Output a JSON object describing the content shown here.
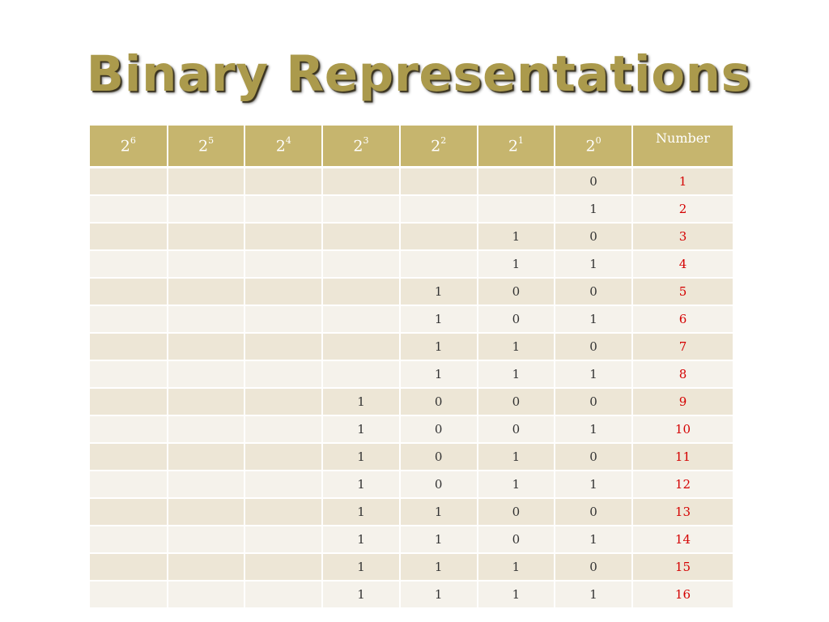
{
  "title": "Binary Representations",
  "table": {
    "headers": [
      {
        "base": "2",
        "exp": "6"
      },
      {
        "base": "2",
        "exp": "5"
      },
      {
        "base": "2",
        "exp": "4"
      },
      {
        "base": "2",
        "exp": "3"
      },
      {
        "base": "2",
        "exp": "2"
      },
      {
        "base": "2",
        "exp": "1"
      },
      {
        "base": "2",
        "exp": "0"
      }
    ],
    "number_header": "Number",
    "rows": [
      {
        "bits": [
          "",
          "",
          "",
          "",
          "",
          "",
          "0"
        ],
        "number": "1"
      },
      {
        "bits": [
          "",
          "",
          "",
          "",
          "",
          "",
          "1"
        ],
        "number": "2"
      },
      {
        "bits": [
          "",
          "",
          "",
          "",
          "",
          "1",
          "0"
        ],
        "number": "3"
      },
      {
        "bits": [
          "",
          "",
          "",
          "",
          "",
          "1",
          "1"
        ],
        "number": "4"
      },
      {
        "bits": [
          "",
          "",
          "",
          "",
          "1",
          "0",
          "0"
        ],
        "number": "5"
      },
      {
        "bits": [
          "",
          "",
          "",
          "",
          "1",
          "0",
          "1"
        ],
        "number": "6"
      },
      {
        "bits": [
          "",
          "",
          "",
          "",
          "1",
          "1",
          "0"
        ],
        "number": "7"
      },
      {
        "bits": [
          "",
          "",
          "",
          "",
          "1",
          "1",
          "1"
        ],
        "number": "8"
      },
      {
        "bits": [
          "",
          "",
          "",
          "1",
          "0",
          "0",
          "0"
        ],
        "number": "9"
      },
      {
        "bits": [
          "",
          "",
          "",
          "1",
          "0",
          "0",
          "1"
        ],
        "number": "10"
      },
      {
        "bits": [
          "",
          "",
          "",
          "1",
          "0",
          "1",
          "0"
        ],
        "number": "11"
      },
      {
        "bits": [
          "",
          "",
          "",
          "1",
          "0",
          "1",
          "1"
        ],
        "number": "12"
      },
      {
        "bits": [
          "",
          "",
          "",
          "1",
          "1",
          "0",
          "0"
        ],
        "number": "13"
      },
      {
        "bits": [
          "",
          "",
          "",
          "1",
          "1",
          "0",
          "1"
        ],
        "number": "14"
      },
      {
        "bits": [
          "",
          "",
          "",
          "1",
          "1",
          "1",
          "0"
        ],
        "number": "15"
      },
      {
        "bits": [
          "",
          "",
          "",
          "1",
          "1",
          "1",
          "1"
        ],
        "number": "16"
      }
    ]
  },
  "colors": {
    "title": "#ab9a4c",
    "header_bg": "#c6b56e",
    "row_odd": "#ede6d6",
    "row_even": "#f5f2eb",
    "number_text": "#d40000"
  }
}
